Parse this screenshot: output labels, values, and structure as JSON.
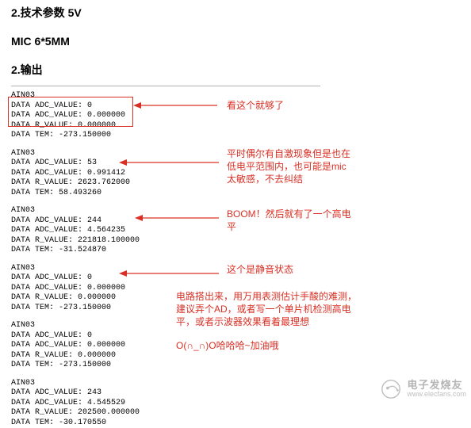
{
  "headings": {
    "tech_params": "2.技术参数 5V",
    "mic": "MIC 6*5MM",
    "output": "2.输出"
  },
  "blocks": [
    {
      "lines": [
        "AIN03",
        "DATA ADC_VALUE: 0",
        "DATA ADC_VALUE: 0.000000",
        "DATA R_VALUE: 0.000000",
        "DATA TEM: -273.150000"
      ]
    },
    {
      "lines": [
        "AIN03",
        "DATA ADC_VALUE: 53",
        "DATA ADC_VALUE: 0.991412",
        "DATA R_VALUE: 2623.762000",
        "DATA TEM: 58.493260"
      ]
    },
    {
      "lines": [
        "AIN03",
        "DATA ADC_VALUE: 244",
        "DATA ADC_VALUE: 4.564235",
        "DATA R_VALUE: 221818.100000",
        "DATA TEM: -31.524870"
      ]
    },
    {
      "lines": [
        "AIN03",
        "DATA ADC_VALUE: 0",
        "DATA ADC_VALUE: 0.000000",
        "DATA R_VALUE: 0.000000",
        "DATA TEM: -273.150000"
      ]
    },
    {
      "lines": [
        "AIN03",
        "DATA ADC_VALUE: 0",
        "DATA ADC_VALUE: 0.000000",
        "DATA R_VALUE: 0.000000",
        "DATA TEM: -273.150000"
      ]
    },
    {
      "lines": [
        "AIN03",
        "DATA ADC_VALUE: 243",
        "DATA ADC_VALUE: 4.545529",
        "DATA R_VALUE: 202500.000000",
        "DATA TEM: -30.170550"
      ]
    }
  ],
  "annotations": {
    "a1": "看这个就够了",
    "a2": "平时偶尔有自激现象但是也在低电平范围内，也可能是mic太敏感，不去纠结",
    "a3": "BOOM！然后就有了一个高电平",
    "a4": "这个是静音状态",
    "a5": "电路搭出来，用万用表测估计手酸的难测，建议弄个AD，或者写一个单片机检测高电平，或者示波器效果看着最理想",
    "a6": "O(∩_∩)O哈哈哈~加油哦"
  },
  "colors": {
    "annotation": "#d93025",
    "text": "#000000",
    "divider": "#b0b0b0",
    "watermark": "#7a7a7a"
  },
  "watermark": {
    "cn": "电子发烧友",
    "en": "www.elecfans.com"
  }
}
